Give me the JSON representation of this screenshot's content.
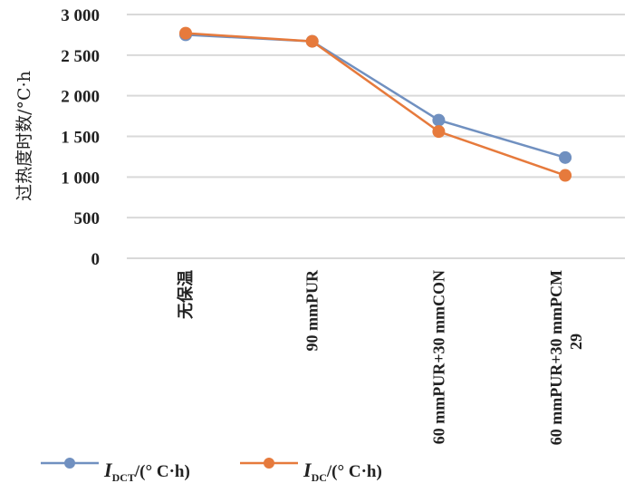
{
  "chart_data": {
    "type": "line",
    "title": "",
    "xlabel": "",
    "ylabel": "过热度时数/°C·h",
    "ylim": [
      0,
      3000
    ],
    "yticks": [
      0,
      500,
      1000,
      1500,
      2000,
      2500,
      3000
    ],
    "ytick_labels": [
      "0",
      "500",
      "1 000",
      "1 500",
      "2 000",
      "2 500",
      "3 000"
    ],
    "categories": [
      "无保温",
      "90 mmPUR",
      "60 mmPUR+30 mmCON",
      "60 mmPUR+30 mmPCM 29"
    ],
    "grid": true,
    "legend_position": "bottom",
    "series": [
      {
        "name": "I_DCT/(°C·h)",
        "label_main": "I",
        "label_sub": "DCT",
        "label_unit": "/(° C·h)",
        "color": "#7090c0",
        "values": [
          2750,
          2670,
          1700,
          1240
        ]
      },
      {
        "name": "I_DC/(°C·h)",
        "label_main": "I",
        "label_sub": "DC",
        "label_unit": "/(° C·h)",
        "color": "#e67a3c",
        "values": [
          2770,
          2670,
          1560,
          1020
        ]
      }
    ]
  }
}
